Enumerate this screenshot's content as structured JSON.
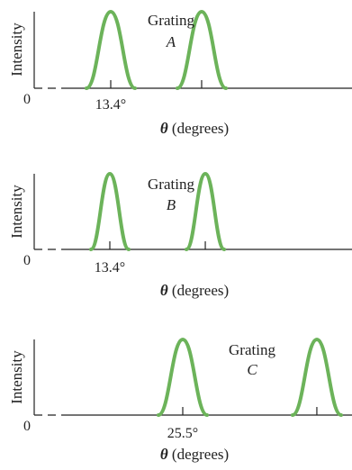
{
  "colors": {
    "peak": "#6cb35a",
    "axis": "#222222",
    "background": "#ffffff"
  },
  "chart_data": [
    {
      "type": "line",
      "title": "",
      "ylabel": "Intensity",
      "xlabel_symbol": "θ",
      "xlabel_text": "(degrees)",
      "zero_label": "0",
      "grating_label": "Grating",
      "grating_letter": "A",
      "marked_angle_label": "13.4°",
      "marked_angle": 13.4,
      "peaks_deg": [
        13.4,
        24.4
      ],
      "peak_shape": "wide"
    },
    {
      "type": "line",
      "title": "",
      "ylabel": "Intensity",
      "xlabel_symbol": "θ",
      "xlabel_text": "(degrees)",
      "zero_label": "0",
      "grating_label": "Grating",
      "grating_letter": "B",
      "marked_angle_label": "13.4°",
      "marked_angle": 13.4,
      "peaks_deg": [
        13.4,
        24.4
      ],
      "peak_shape": "narrow"
    },
    {
      "type": "line",
      "title": "",
      "ylabel": "Intensity",
      "xlabel_symbol": "θ",
      "xlabel_text": "(degrees)",
      "zero_label": "0",
      "grating_label": "Grating",
      "grating_letter": "C",
      "marked_angle_label": "25.5°",
      "marked_angle": 25.5,
      "peaks_deg": [
        25.5,
        40.5
      ],
      "peak_shape": "wide"
    }
  ]
}
